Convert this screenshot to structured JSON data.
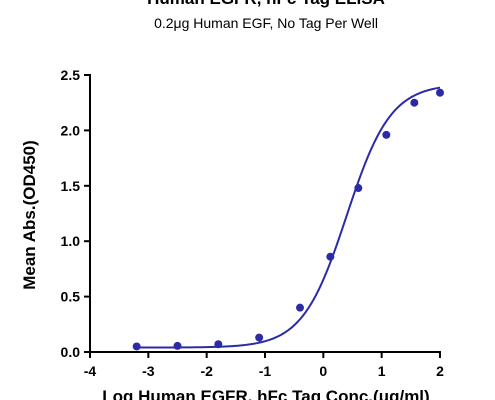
{
  "chart_data": {
    "type": "scatter",
    "title": "Human EGFR, hFc Tag ELISA",
    "subtitle": "0.2μg Human EGF, No Tag Per Well",
    "xlabel": "Log Human EGFR, hFc Tag Conc.(μg/ml)",
    "ylabel": "Mean Abs.(OD450)",
    "xlim": [
      -4,
      2
    ],
    "ylim": [
      0,
      2.5
    ],
    "x_ticks": [
      "-4",
      "-3",
      "-2",
      "-1",
      "0",
      "1",
      "2"
    ],
    "y_ticks": [
      "0.0",
      "0.5",
      "1.0",
      "1.5",
      "2.0",
      "2.5"
    ],
    "grid": false,
    "series": [
      {
        "points": [
          {
            "x": -3.2,
            "y": 0.05
          },
          {
            "x": -2.5,
            "y": 0.055
          },
          {
            "x": -1.8,
            "y": 0.07
          },
          {
            "x": -1.1,
            "y": 0.13
          },
          {
            "x": -0.4,
            "y": 0.4
          },
          {
            "x": 0.12,
            "y": 0.86
          },
          {
            "x": 0.6,
            "y": 1.48
          },
          {
            "x": 1.08,
            "y": 1.96
          },
          {
            "x": 1.56,
            "y": 2.25
          },
          {
            "x": 2.0,
            "y": 2.34
          }
        ],
        "fit": {
          "bottom": 0.04,
          "top": 2.42,
          "logEC50": 0.4,
          "hill": 1.15
        },
        "color": "#2b2ba8"
      }
    ]
  }
}
